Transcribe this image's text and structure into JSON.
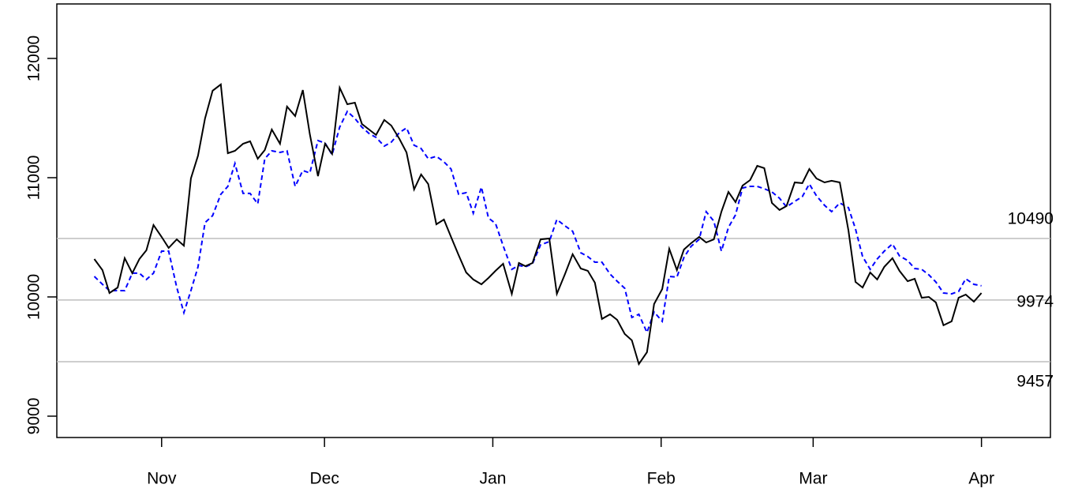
{
  "chart_data": {
    "type": "line",
    "x": [
      -12.4,
      -10.9,
      -9.6,
      -8.1,
      -6.8,
      -5.4,
      -4.1,
      -2.8,
      -1.5,
      0,
      1.3,
      2.8,
      4.1,
      5.4,
      6.7,
      8.0,
      9.4,
      10.9,
      12.2,
      13.5,
      15.0,
      16.3,
      17.7,
      19.0,
      20.3,
      21.8,
      23.1,
      24.6,
      26.0,
      27.3,
      28.8,
      30.1,
      31.4,
      32.8,
      34.2,
      35.6,
      36.9,
      38.2,
      39.5,
      41.0,
      42.3,
      43.8,
      45.1,
      46.5,
      47.8,
      49.1,
      50.6,
      52.0,
      53.3,
      54.7,
      56.1,
      57.4,
      58.9,
      60.2,
      61.5,
      62.9,
      64.5,
      65.8,
      67.0,
      68.3,
      69.8,
      71.4,
      72.8,
      74.3,
      75.7,
      77.2,
      78.5,
      79.8,
      81.1,
      82.6,
      83.9,
      85.3,
      86.6,
      87.9,
      89.4,
      90.7,
      92.2,
      93.5,
      94.9,
      96.2,
      97.5,
      99.0,
      100.3,
      101.7,
      103.1,
      104.4,
      105.7,
      107.0,
      108.4,
      109.7,
      111.0,
      112.4,
      113.8,
      115.1,
      116.6,
      118.0,
      119.3,
      120.6,
      122.1,
      123.4,
      124.9,
      126.5,
      127.8,
      129.1,
      130.5,
      131.8,
      133.1,
      134.6,
      135.9,
      137.4,
      138.7,
      140.0,
      141.3,
      142.6,
      144.0,
      145.5,
      146.8,
      148.1,
      149.6,
      151.0
    ],
    "series": [
      {
        "color": "#000000",
        "dash": "solid",
        "values": [
          10318,
          10225,
          10033,
          10079,
          10325,
          10199,
          10318,
          10391,
          10603,
          10503,
          10411,
          10483,
          10430,
          10993,
          11185,
          11497,
          11729,
          11782,
          11205,
          11225,
          11285,
          11305,
          11159,
          11232,
          11404,
          11285,
          11596,
          11517,
          11735,
          11364,
          11013,
          11285,
          11199,
          11755,
          11616,
          11629,
          11450,
          11404,
          11358,
          11484,
          11437,
          11325,
          11212,
          10901,
          11027,
          10947,
          10609,
          10649,
          10503,
          10351,
          10205,
          10146,
          10106,
          10159,
          10219,
          10278,
          10026,
          10285,
          10258,
          10285,
          10483,
          10490,
          10026,
          10192,
          10358,
          10238,
          10219,
          10119,
          9815,
          9854,
          9808,
          9689,
          9636,
          9437,
          9536,
          9940,
          10066,
          10404,
          10225,
          10397,
          10450,
          10503,
          10457,
          10483,
          10715,
          10881,
          10795,
          10934,
          10980,
          11099,
          11080,
          10788,
          10729,
          10762,
          10960,
          10954,
          11073,
          10993,
          10960,
          10974,
          10960,
          10556,
          10126,
          10079,
          10205,
          10146,
          10252,
          10325,
          10219,
          10132,
          10152,
          9993,
          10000,
          9954,
          9762,
          9795,
          9993,
          10020,
          9960,
          10033
        ]
      },
      {
        "color": "#0000ff",
        "dash": "dashed",
        "values": [
          10172,
          10106,
          10053,
          10053,
          10053,
          10199,
          10199,
          10146,
          10199,
          10384,
          10384,
          10079,
          9868,
          10053,
          10252,
          10623,
          10682,
          10861,
          10927,
          11119,
          10868,
          10868,
          10781,
          11159,
          11225,
          11212,
          11225,
          10927,
          11060,
          11040,
          11311,
          11291,
          11192,
          11424,
          11556,
          11497,
          11424,
          11371,
          11338,
          11265,
          11298,
          11378,
          11417,
          11272,
          11245,
          11159,
          11179,
          11133,
          11073,
          10861,
          10874,
          10702,
          10921,
          10662,
          10616,
          10430,
          10232,
          10265,
          10252,
          10278,
          10437,
          10464,
          10649,
          10596,
          10550,
          10371,
          10338,
          10291,
          10291,
          10192,
          10132,
          10073,
          9828,
          9854,
          9702,
          9874,
          9795,
          10172,
          10166,
          10331,
          10424,
          10483,
          10715,
          10636,
          10384,
          10583,
          10689,
          10914,
          10927,
          10927,
          10907,
          10881,
          10828,
          10755,
          10801,
          10841,
          10947,
          10848,
          10768,
          10715,
          10788,
          10748,
          10570,
          10338,
          10232,
          10318,
          10384,
          10444,
          10344,
          10305,
          10238,
          10232,
          10185,
          10126,
          10033,
          10026,
          10046,
          10152,
          10106,
          10093
        ]
      }
    ],
    "xlim": [
      -19.3,
      163.7
    ],
    "xticks": [
      {
        "value": 0,
        "label": "Nov"
      },
      {
        "value": 30,
        "label": "Dec"
      },
      {
        "value": 61,
        "label": "Jan"
      },
      {
        "value": 92,
        "label": "Feb"
      },
      {
        "value": 120,
        "label": "Mar"
      },
      {
        "value": 151,
        "label": "Apr"
      }
    ],
    "ylim": [
      8821,
      12457
    ],
    "yticks": [
      9000,
      10000,
      11000,
      12000
    ],
    "reference_lines": [
      10490,
      9974,
      9457
    ],
    "reference_color": "#bebebe"
  }
}
